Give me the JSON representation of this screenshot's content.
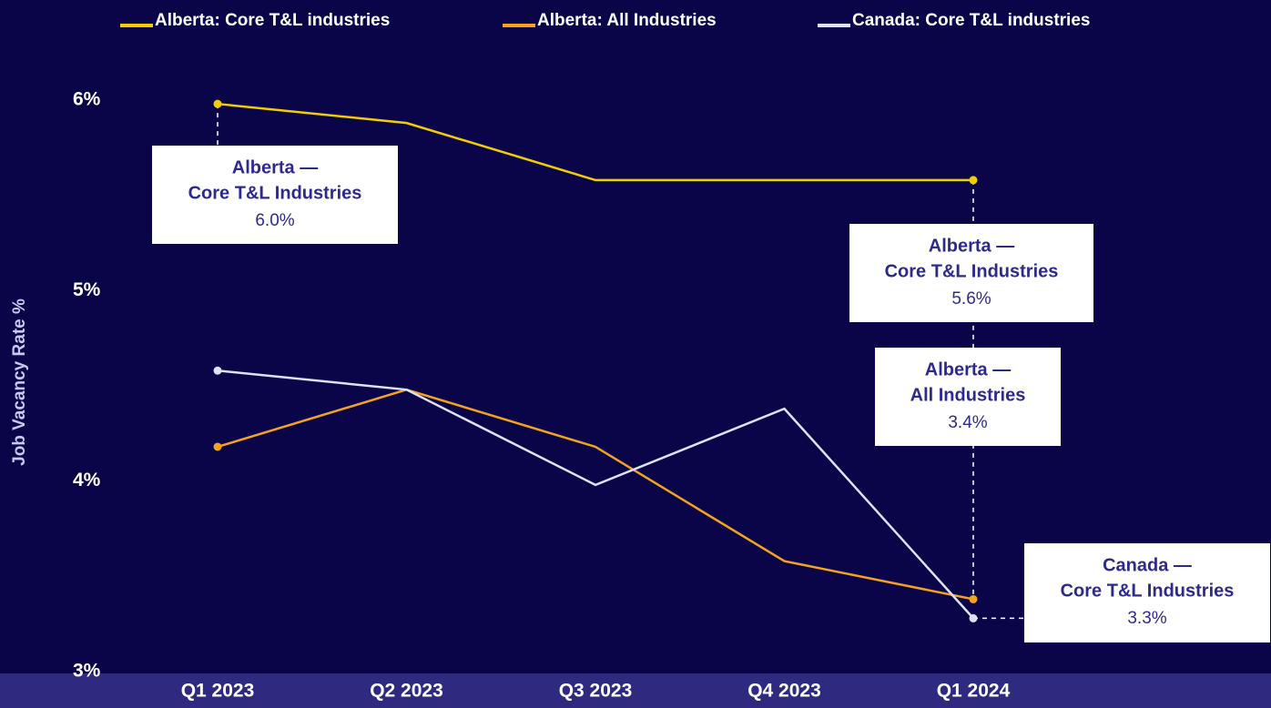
{
  "chart_data": {
    "type": "line",
    "y_label": "Job Vacancy Rate %",
    "categories": [
      "Q1 2023",
      "Q2 2023",
      "Q3 2023",
      "Q4 2023",
      "Q1 2024"
    ],
    "series": [
      {
        "name": "Alberta: Core T&L industries",
        "color": "#f2cd00",
        "values": [
          5.98,
          5.88,
          5.58,
          5.58,
          5.58
        ],
        "value_labels": [
          "6.0%",
          null,
          null,
          null,
          "5.6%"
        ]
      },
      {
        "name": "Alberta: All Industries",
        "color": "#f5a21f",
        "values": [
          4.18,
          4.48,
          4.18,
          3.58,
          3.38
        ],
        "value_labels": [
          null,
          null,
          null,
          null,
          "3.4%"
        ]
      },
      {
        "name": "Canada: Core T&L industries",
        "color": "#dde2f6",
        "values": [
          4.58,
          4.48,
          3.98,
          4.38,
          3.28
        ],
        "value_labels": [
          null,
          null,
          null,
          null,
          "3.3%"
        ]
      }
    ],
    "annotations": [
      {
        "text": [
          "Alberta —",
          "Core T&L Industries"
        ]
      },
      {
        "text": [
          "Alberta —",
          "Core T&L Industries"
        ]
      },
      {
        "text": [
          "Alberta —",
          "All Industries"
        ]
      },
      {
        "text": [
          "Canada —",
          "Core T&L Industries"
        ]
      }
    ],
    "ylim": [
      3,
      6
    ],
    "yticks": [
      {
        "value": 3,
        "label": "3%"
      },
      {
        "value": 4,
        "label": "4%"
      },
      {
        "value": 5,
        "label": "5%"
      },
      {
        "value": 6,
        "label": "6%"
      }
    ]
  }
}
